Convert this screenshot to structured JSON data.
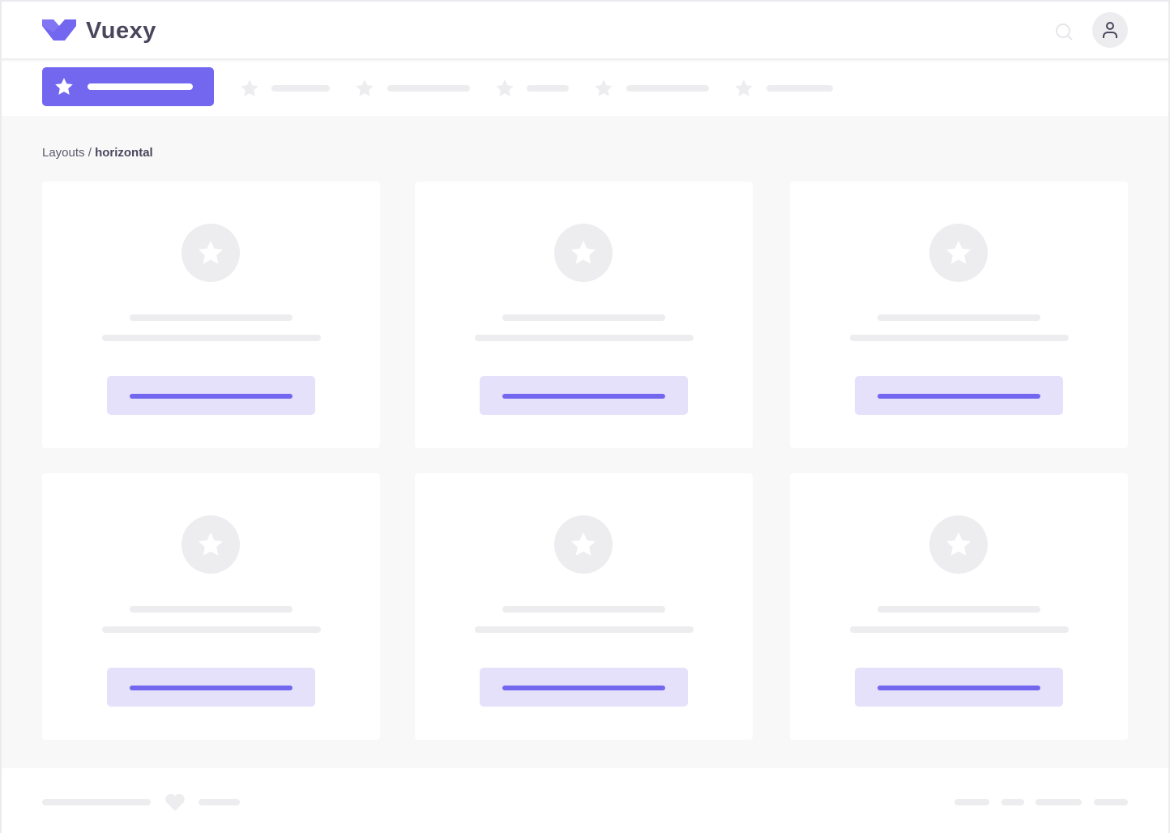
{
  "app": {
    "name": "Vuexy",
    "brand_color": "#7367f0"
  },
  "header": {
    "search_icon": "search-icon",
    "avatar_icon": "user-icon"
  },
  "nav": {
    "items": [
      {
        "icon": "star-icon",
        "active": true
      },
      {
        "icon": "star-icon"
      },
      {
        "icon": "star-icon"
      },
      {
        "icon": "star-icon"
      },
      {
        "icon": "star-icon"
      },
      {
        "icon": "star-icon"
      }
    ]
  },
  "breadcrumb": {
    "parent": "Layouts",
    "separator": " / ",
    "current": "horizontal"
  },
  "cards": [
    {
      "icon": "star-icon"
    },
    {
      "icon": "star-icon"
    },
    {
      "icon": "star-icon"
    },
    {
      "icon": "star-icon"
    },
    {
      "icon": "star-icon"
    },
    {
      "icon": "star-icon"
    }
  ],
  "footer": {
    "icon": "heart-icon"
  }
}
